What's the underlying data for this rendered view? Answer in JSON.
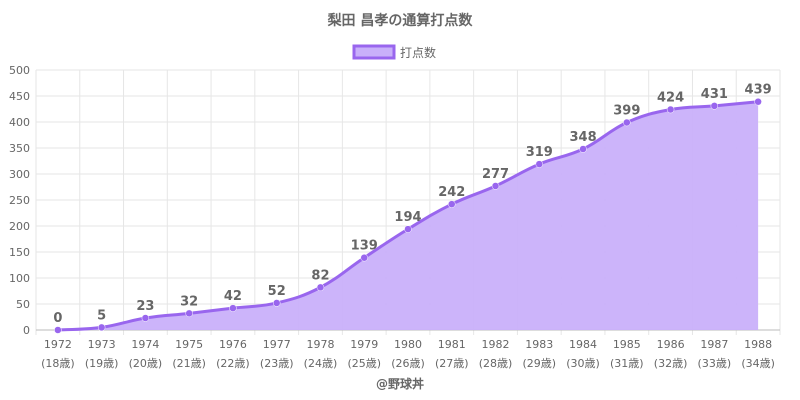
{
  "chart_data": {
    "type": "area",
    "title": "梨田 昌孝の通算打点数",
    "legend": {
      "position": "top",
      "entries": [
        "打点数"
      ]
    },
    "categories": [
      "1972",
      "1973",
      "1974",
      "1975",
      "1976",
      "1977",
      "1978",
      "1979",
      "1980",
      "1981",
      "1982",
      "1983",
      "1984",
      "1985",
      "1986",
      "1987",
      "1988"
    ],
    "ages": [
      "(18歳)",
      "(19歳)",
      "(20歳)",
      "(21歳)",
      "(22歳)",
      "(23歳)",
      "(24歳)",
      "(25歳)",
      "(26歳)",
      "(27歳)",
      "(28歳)",
      "(29歳)",
      "(30歳)",
      "(31歳)",
      "(32歳)",
      "(33歳)",
      "(34歳)"
    ],
    "series": [
      {
        "name": "打点数",
        "values": [
          0,
          5,
          23,
          32,
          42,
          52,
          82,
          139,
          194,
          242,
          277,
          319,
          348,
          399,
          424,
          431,
          439
        ]
      }
    ],
    "ylim": [
      0,
      500
    ],
    "yticks": [
      0,
      50,
      100,
      150,
      200,
      250,
      300,
      350,
      400,
      450,
      500
    ],
    "grid": true,
    "colors": {
      "line": "#9966ee",
      "fill": "#c9b0fa",
      "point": "#9966ee"
    }
  },
  "footer": "@野球丼"
}
